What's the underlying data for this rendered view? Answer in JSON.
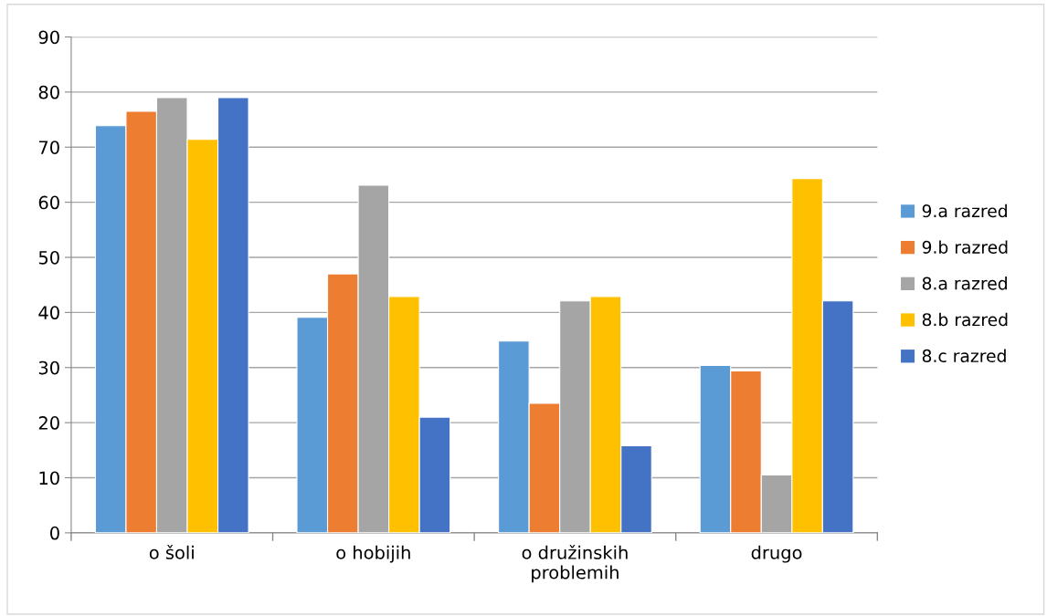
{
  "chart_data": {
    "type": "bar",
    "categories": [
      "o šoli",
      "o hobijih",
      "o družinskih problemih",
      "drugo"
    ],
    "series": [
      {
        "name": "9.a razred",
        "color": "#5b9bd5",
        "values": [
          73.9,
          39.1,
          34.8,
          30.4
        ]
      },
      {
        "name": "9.b razred",
        "color": "#ed7d31",
        "values": [
          76.5,
          47,
          23.5,
          29.4
        ]
      },
      {
        "name": "8.a razred",
        "color": "#a5a5a5",
        "values": [
          79,
          63.1,
          42.1,
          10.5
        ]
      },
      {
        "name": "8.b razred",
        "color": "#ffc000",
        "values": [
          71.4,
          42.9,
          42.9,
          64.3
        ]
      },
      {
        "name": "8.c razred",
        "color": "#4472c4",
        "values": [
          79,
          21,
          15.8,
          42.1
        ]
      }
    ],
    "ylim": [
      0,
      90
    ],
    "yticks": [
      0,
      10,
      20,
      30,
      40,
      50,
      60,
      70,
      80,
      90
    ],
    "grid": "y",
    "legend": "right"
  }
}
